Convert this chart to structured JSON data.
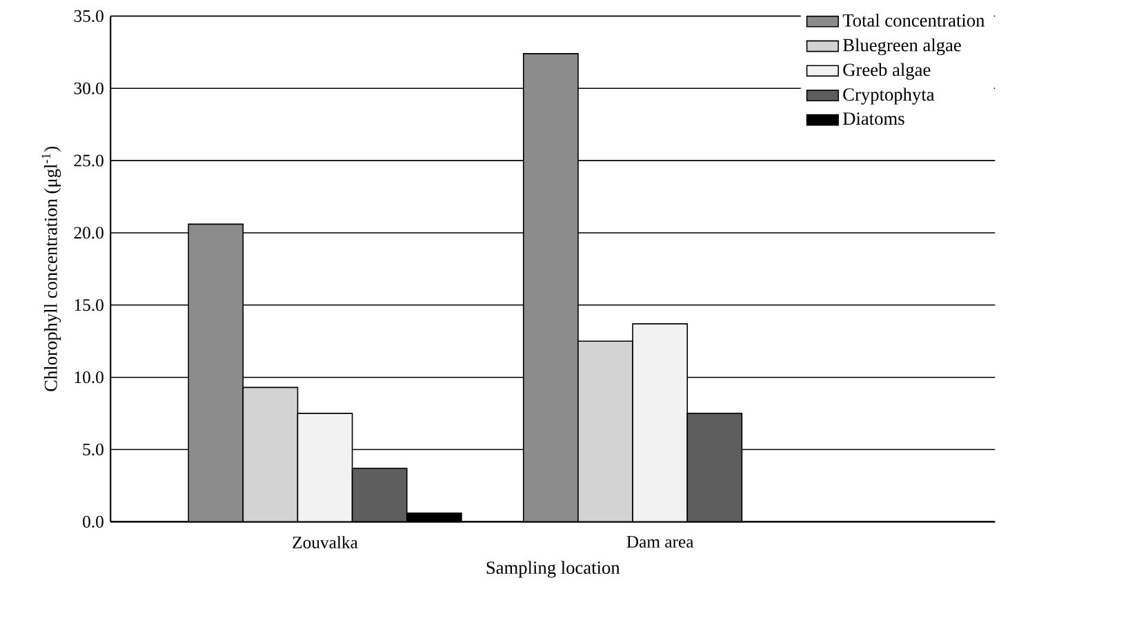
{
  "chart_data": {
    "type": "bar",
    "xlabel": "Sampling location",
    "ylabel": "Chlorophyll concentration (μgl$^{-1}$)",
    "categories": [
      "Zouvalka",
      "Dam area"
    ],
    "series": [
      {
        "name": "Total concentration",
        "color": "#8c8c8c",
        "values": [
          20.6,
          32.4
        ]
      },
      {
        "name": "Bluegreen algae",
        "color": "#d3d3d3",
        "values": [
          9.3,
          12.5
        ]
      },
      {
        "name": "Greeb algae",
        "color": "#f2f2f2",
        "values": [
          7.5,
          13.7
        ]
      },
      {
        "name": "Cryptophyta",
        "color": "#5e5e5e",
        "values": [
          3.7,
          7.5
        ]
      },
      {
        "name": "Diatoms",
        "color": "#000000",
        "values": [
          0.6,
          null
        ]
      }
    ],
    "ylim": [
      0,
      35
    ],
    "yticks": [
      {
        "value": 0,
        "label": "0.0"
      },
      {
        "value": 5,
        "label": "5.0"
      },
      {
        "value": 10,
        "label": "10.0"
      },
      {
        "value": 15,
        "label": "15.0"
      },
      {
        "value": 20,
        "label": "20.0"
      },
      {
        "value": 25,
        "label": "25.0"
      },
      {
        "value": 30,
        "label": "30.0"
      },
      {
        "value": 35,
        "label": "35.0"
      }
    ],
    "grid": "y",
    "legend": "top right"
  }
}
